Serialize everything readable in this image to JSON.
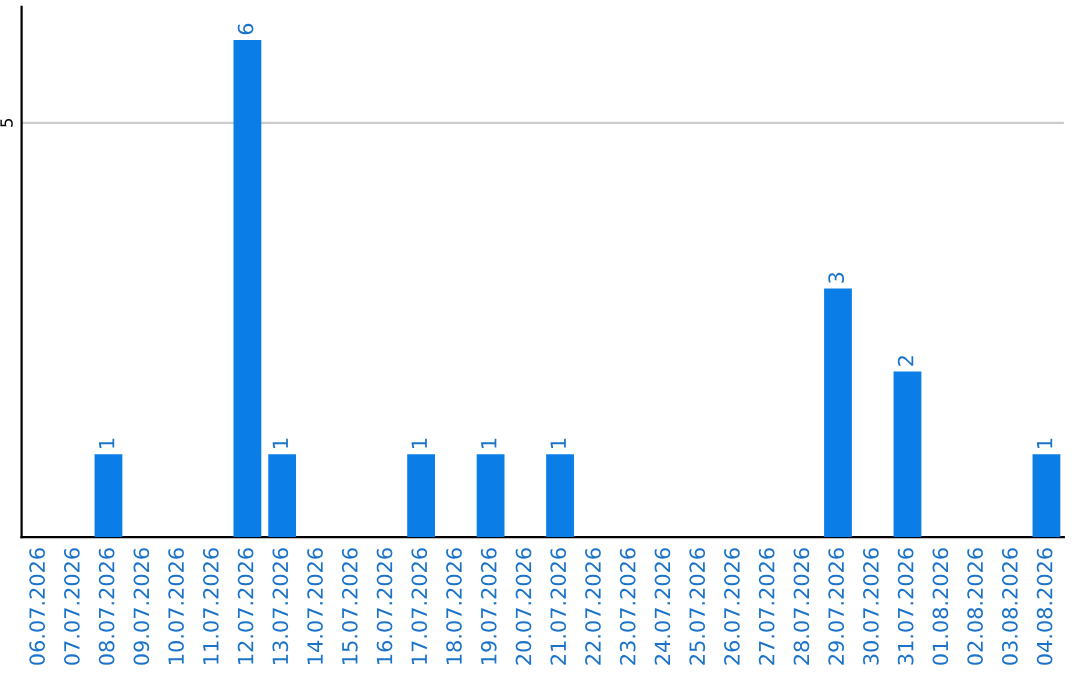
{
  "chart_data": {
    "type": "bar",
    "categories": [
      "06.07.2026",
      "07.07.2026",
      "08.07.2026",
      "09.07.2026",
      "10.07.2026",
      "11.07.2026",
      "12.07.2026",
      "13.07.2026",
      "14.07.2026",
      "15.07.2026",
      "16.07.2026",
      "17.07.2026",
      "18.07.2026",
      "19.07.2026",
      "20.07.2026",
      "21.07.2026",
      "22.07.2026",
      "23.07.2026",
      "24.07.2026",
      "25.07.2026",
      "26.07.2026",
      "27.07.2026",
      "28.07.2026",
      "29.07.2026",
      "30.07.2026",
      "31.07.2026",
      "01.08.2026",
      "02.08.2026",
      "03.08.2026",
      "04.08.2026"
    ],
    "values": [
      0,
      0,
      1,
      0,
      0,
      0,
      6,
      1,
      0,
      0,
      0,
      1,
      0,
      1,
      0,
      1,
      0,
      0,
      0,
      0,
      0,
      0,
      0,
      3,
      0,
      2,
      0,
      0,
      0,
      1
    ],
    "color": "#0a7ee6",
    "value_labels": [
      null,
      null,
      "1",
      null,
      null,
      null,
      "6",
      "1",
      null,
      null,
      null,
      "1",
      null,
      "1",
      null,
      "1",
      null,
      null,
      null,
      null,
      null,
      null,
      null,
      "3",
      null,
      "2",
      null,
      null,
      null,
      "1"
    ],
    "ylim": [
      0,
      6.4
    ],
    "yticks": [
      5
    ],
    "grid": "y"
  }
}
